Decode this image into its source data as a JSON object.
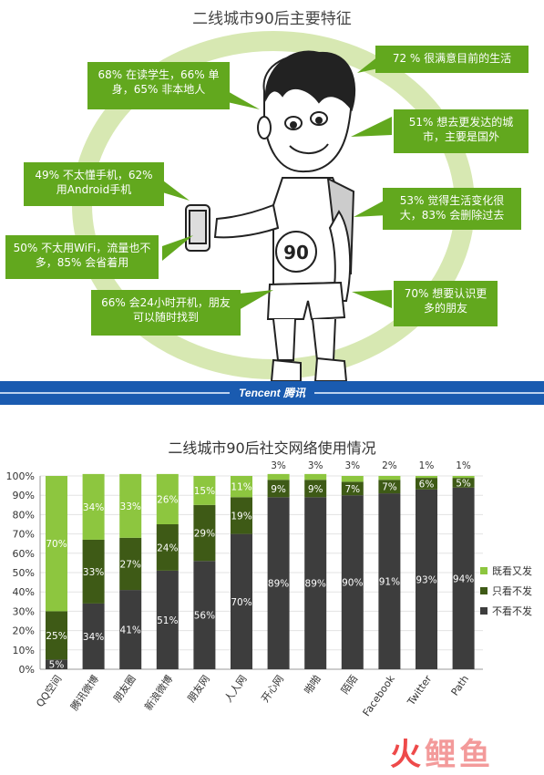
{
  "infographic": {
    "title": "二线城市90后主要特征",
    "shirt_number": "90",
    "callouts": [
      {
        "id": "student",
        "text": "68% 在读学生，66% 单身，65% 非本地人"
      },
      {
        "id": "satisfied",
        "text": "72 % 很满意目前的生活"
      },
      {
        "id": "move",
        "text": "51% 想去更发达的城市，主要是国外"
      },
      {
        "id": "phone",
        "text": "49% 不太懂手机，62% 用Android手机"
      },
      {
        "id": "change",
        "text": "53% 觉得生活变化很大，83% 会删除过去"
      },
      {
        "id": "wifi",
        "text": "50% 不太用WiFi，流量也不多，85% 会省着用"
      },
      {
        "id": "online",
        "text": "66% 会24小时开机，朋友可以随时找到"
      },
      {
        "id": "friends",
        "text": "70% 想要认识更多的朋友"
      }
    ],
    "banner_logo": "Tencent 腾讯",
    "colors": {
      "callout": "#62a81e",
      "ring": "#d7e8b2",
      "banner": "#1a5bb0"
    }
  },
  "chart_data": {
    "type": "bar",
    "stacked": true,
    "title": "二线城市90后社交网络使用情况",
    "categories": [
      "QQ空间",
      "腾讯微博",
      "朋友圈",
      "新浪微博",
      "朋友网",
      "人人网",
      "开心网",
      "啪啪",
      "陌陌",
      "Facebook",
      "Twitter",
      "Path"
    ],
    "series": [
      {
        "name": "不看不发",
        "color": "#3d3d3d",
        "values": [
          5,
          34,
          41,
          51,
          56,
          70,
          89,
          89,
          90,
          91,
          93,
          94
        ]
      },
      {
        "name": "只看不发",
        "color": "#3e5a16",
        "values": [
          25,
          33,
          27,
          24,
          29,
          19,
          9,
          9,
          7,
          7,
          6,
          5
        ]
      },
      {
        "name": "既看又发",
        "color": "#8dc63f",
        "values": [
          70,
          34,
          33,
          26,
          15,
          11,
          3,
          3,
          3,
          2,
          1,
          1
        ]
      }
    ],
    "value_labels": [
      [
        "5%",
        "34%",
        "41%",
        "51%",
        "56%",
        "70%",
        "89%",
        "89%",
        "90%",
        "91%",
        "93%",
        "94%"
      ],
      [
        "25%",
        "33%",
        "27%",
        "24%",
        "29%",
        "19%",
        "9%",
        "9%",
        "7%",
        "7%",
        "6%",
        "5%"
      ],
      [
        "70%",
        "34%",
        "33%",
        "26%",
        "15%",
        "11%",
        "3%",
        "3%",
        "3%",
        "2%",
        "1%",
        "1%"
      ]
    ],
    "y_ticks": [
      "0%",
      "10%",
      "20%",
      "30%",
      "40%",
      "50%",
      "60%",
      "70%",
      "80%",
      "90%",
      "100%"
    ],
    "ylim": [
      0,
      100
    ],
    "legend": [
      "既看又发",
      "只看不发",
      "不看不发"
    ],
    "legend_position": "right",
    "grid": true
  },
  "watermark": {
    "part1": "火",
    "part2": "鲤鱼"
  }
}
